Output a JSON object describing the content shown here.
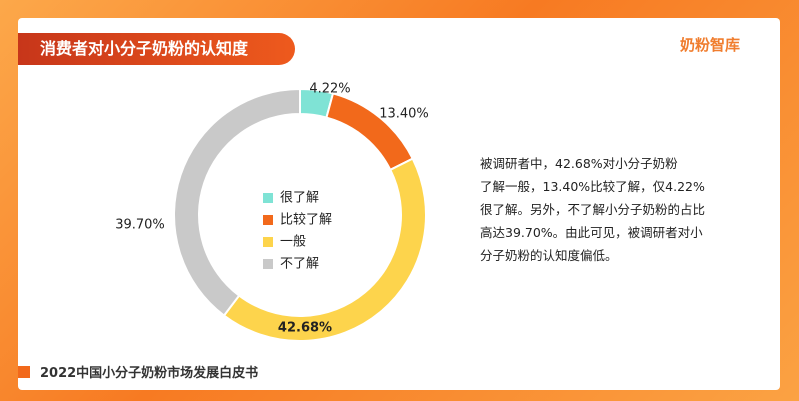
{
  "chart_data": {
    "type": "pie",
    "donut": true,
    "title": "消费者对小分子奶粉的认知度",
    "categories": [
      "很了解",
      "比较了解",
      "一般",
      "不了解"
    ],
    "values": [
      4.22,
      13.4,
      42.68,
      39.7
    ],
    "value_labels": [
      "4.22%",
      "13.40%",
      "42.68%",
      "39.70%"
    ],
    "colors": [
      "#7fe3d5",
      "#f2691b",
      "#fdd44c",
      "#c9c9c9"
    ],
    "description": [
      "被调研者中，42.68%对小分子奶粉",
      "了解一般，13.40%比较了解，仅4.22%",
      "很了解。另外，不了解小分子奶粉的占比",
      "高达39.70%。由此可见，被调研者对小",
      "分子奶粉的认知度偏低。"
    ],
    "footer": "2022中国小分子奶粉市场发展白皮书",
    "brand": "奶粉智库"
  }
}
